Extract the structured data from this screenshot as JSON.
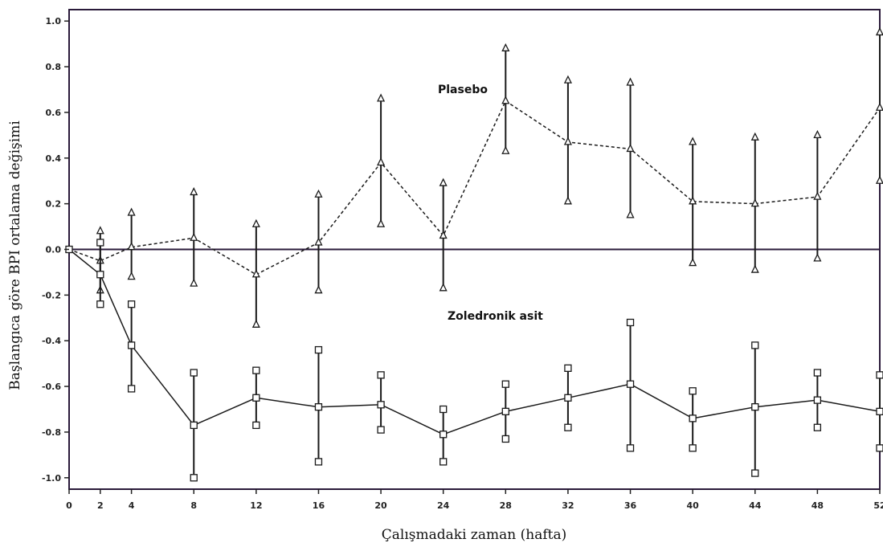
{
  "chart_data": {
    "type": "line",
    "title": "",
    "xlabel": "Çalışmadaki zaman (hafta)",
    "ylabel": "Başlangıca göre BPI ortalama değişimi",
    "x": [
      0,
      2,
      4,
      8,
      12,
      16,
      20,
      24,
      28,
      32,
      36,
      40,
      44,
      48,
      52
    ],
    "x_tick_labels": [
      "0",
      "2",
      "4",
      "8",
      "12",
      "16",
      "20",
      "24",
      "28",
      "32",
      "36",
      "40",
      "44",
      "48",
      "52"
    ],
    "y_ticks": [
      -1.0,
      -0.8,
      -0.6,
      -0.4,
      -0.2,
      0.0,
      0.2,
      0.4,
      0.6,
      0.8,
      1.0
    ],
    "y_tick_labels": [
      "-1.0",
      "-0.8",
      "-0.6",
      "-0.4",
      "-0.2",
      "0.0",
      "0.2",
      "0.4",
      "0.6",
      "0.8",
      "1.0"
    ],
    "ylim": [
      -1.05,
      1.05
    ],
    "xlim": [
      0,
      52
    ],
    "reference_line_y": 0.0,
    "grid": false,
    "series": [
      {
        "name": "Plasebo",
        "line_style": "dashed",
        "marker": "triangle",
        "values": [
          0.0,
          -0.05,
          0.01,
          0.05,
          -0.11,
          0.03,
          0.38,
          0.06,
          0.65,
          0.47,
          0.44,
          0.21,
          0.2,
          0.23,
          0.62
        ],
        "lower": [
          0.0,
          -0.18,
          -0.12,
          -0.15,
          -0.33,
          -0.18,
          0.11,
          -0.17,
          0.43,
          0.21,
          0.15,
          -0.06,
          -0.09,
          -0.04,
          0.3
        ],
        "upper": [
          0.0,
          0.08,
          0.16,
          0.25,
          0.11,
          0.24,
          0.66,
          0.29,
          0.88,
          0.74,
          0.73,
          0.47,
          0.49,
          0.5,
          0.95
        ]
      },
      {
        "name": "Zoledronik asit",
        "line_style": "solid",
        "marker": "square",
        "values": [
          0.0,
          -0.11,
          -0.42,
          -0.77,
          -0.65,
          -0.69,
          -0.68,
          -0.81,
          -0.71,
          -0.65,
          -0.59,
          -0.74,
          -0.69,
          -0.66,
          -0.71
        ],
        "lower": [
          0.0,
          -0.24,
          -0.61,
          -1.0,
          -0.77,
          -0.93,
          -0.79,
          -0.93,
          -0.83,
          -0.78,
          -0.87,
          -0.87,
          -0.98,
          -0.78,
          -0.87
        ],
        "upper": [
          0.0,
          0.03,
          -0.24,
          -0.54,
          -0.53,
          -0.44,
          -0.55,
          -0.7,
          -0.59,
          -0.52,
          -0.32,
          -0.62,
          -0.42,
          -0.54,
          -0.55
        ]
      }
    ]
  }
}
